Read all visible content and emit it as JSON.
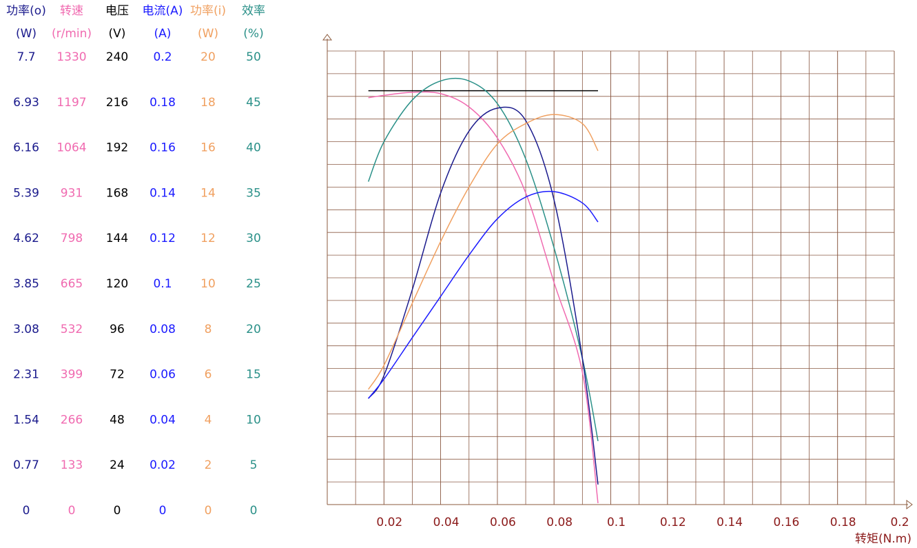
{
  "chart_data": {
    "type": "line",
    "xlabel": "转矩(N.m)",
    "xlim": [
      0,
      0.2
    ],
    "xticks": [
      0.02,
      0.04,
      0.06,
      0.08,
      0.1,
      0.12,
      0.14,
      0.16,
      0.18,
      0.2
    ],
    "x": [
      0.0145,
      0.02,
      0.03,
      0.04,
      0.05,
      0.06,
      0.07,
      0.08,
      0.09,
      0.0955
    ],
    "axes": [
      {
        "title": "功率(o)",
        "unit": "(W)",
        "color": "#1a1a8c",
        "ylim": [
          0,
          7.7
        ],
        "yticks": [
          0,
          0.77,
          1.54,
          2.31,
          3.08,
          3.85,
          4.62,
          5.39,
          6.16,
          6.93,
          7.7
        ]
      },
      {
        "title": "转速",
        "unit": "(r/min)",
        "color": "#f06ab0",
        "ylim": [
          0,
          1330
        ],
        "yticks": [
          0,
          133,
          266,
          399,
          532,
          665,
          798,
          931,
          1064,
          1197,
          1330
        ]
      },
      {
        "title": "电压",
        "unit": "(V)",
        "color": "#000000",
        "ylim": [
          0,
          240
        ],
        "yticks": [
          0,
          24,
          48,
          72,
          96,
          120,
          144,
          168,
          192,
          216,
          240
        ]
      },
      {
        "title": "电流(A)",
        "unit": "(A)",
        "color": "#1a1aff",
        "ylim": [
          0,
          0.2
        ],
        "yticks": [
          0,
          0.02,
          0.04,
          0.06,
          0.08,
          0.1,
          0.12,
          0.14,
          0.16,
          0.18,
          0.2
        ]
      },
      {
        "title": "功率(i)",
        "unit": "(W)",
        "color": "#f0a060",
        "ylim": [
          0,
          20
        ],
        "yticks": [
          0,
          2,
          4,
          6,
          8,
          10,
          12,
          14,
          16,
          18,
          20
        ]
      },
      {
        "title": "效率",
        "unit": "(%)",
        "color": "#2a9088",
        "ylim": [
          0,
          50
        ],
        "yticks": [
          0,
          5,
          10,
          15,
          20,
          25,
          30,
          35,
          40,
          45,
          50
        ]
      }
    ],
    "series": [
      {
        "axis": 2,
        "color": "#000000",
        "values": [
          219,
          219,
          219,
          219,
          219,
          219,
          219,
          219,
          219,
          219
        ]
      },
      {
        "axis": 1,
        "color": "#f06ab0",
        "values": [
          1193,
          1200,
          1209,
          1205,
          1166,
          1075,
          914,
          651,
          388,
          4
        ]
      },
      {
        "axis": 5,
        "color": "#2a9088",
        "values": [
          35.6,
          40.0,
          44.6,
          46.7,
          46.7,
          44.2,
          38.1,
          28.3,
          16.1,
          7.0
        ]
      },
      {
        "axis": 0,
        "color": "#1a1a8c",
        "values": [
          1.8,
          2.19,
          3.65,
          5.29,
          6.34,
          6.73,
          6.52,
          5.17,
          2.48,
          0.34
        ]
      },
      {
        "axis": 4,
        "color": "#f0a060",
        "values": [
          5.08,
          6.14,
          8.88,
          11.6,
          14.0,
          15.9,
          16.8,
          17.2,
          16.8,
          15.6
        ]
      },
      {
        "axis": 3,
        "color": "#1a1aff",
        "values": [
          0.0468,
          0.0553,
          0.0736,
          0.0918,
          0.11,
          0.126,
          0.1356,
          0.138,
          0.133,
          0.1246
        ]
      }
    ]
  }
}
